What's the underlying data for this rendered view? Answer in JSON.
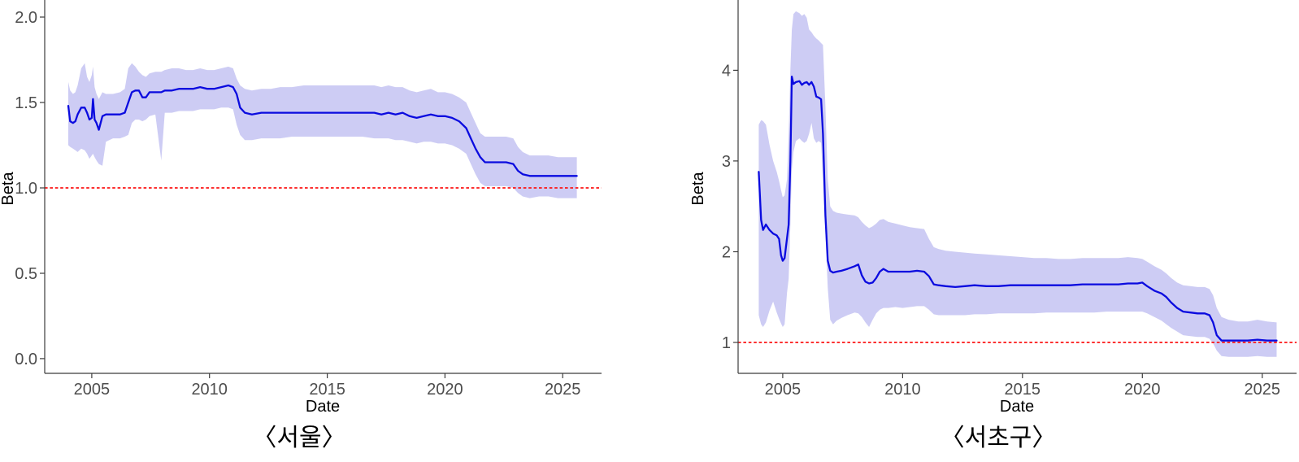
{
  "page": {
    "background": "#ffffff"
  },
  "style": {
    "line_color": "#0b0bdf",
    "band_color": "#cdccf4",
    "reference_color": "#fb1414",
    "axis_color": "#3c3c3c",
    "tick_label_color": "#4d4d4d",
    "title_color": "#000000"
  },
  "chart_data": [
    {
      "type": "line",
      "caption": "〈서울〉",
      "xlabel": "Date",
      "ylabel": "Beta",
      "x_ticks": [
        2005,
        2010,
        2015,
        2020,
        2025
      ],
      "y_ticks": [
        0,
        0.5,
        1,
        1.5,
        2
      ],
      "y_tick_labels": [
        "0.0",
        "0.5",
        "1.0",
        "1.5",
        "2.0"
      ],
      "xlim": [
        2003.0,
        2026.65
      ],
      "ylim": [
        -0.086,
        2.1
      ],
      "reference_y": 1.0,
      "grid": false,
      "legend": "none",
      "series": {
        "x": [
          2004.0,
          2004.08,
          2004.2,
          2004.3,
          2004.4,
          2004.55,
          2004.7,
          2004.8,
          2004.9,
          2005.0,
          2005.05,
          2005.12,
          2005.2,
          2005.3,
          2005.45,
          2005.6,
          2005.9,
          2006.2,
          2006.4,
          2006.55,
          2006.7,
          2006.85,
          2007.0,
          2007.15,
          2007.3,
          2007.45,
          2007.7,
          2007.95,
          2008.1,
          2008.4,
          2008.7,
          2009.0,
          2009.3,
          2009.6,
          2009.9,
          2010.2,
          2010.5,
          2010.8,
          2011.0,
          2011.15,
          2011.3,
          2011.5,
          2011.8,
          2012.2,
          2012.6,
          2013.0,
          2013.5,
          2014.0,
          2014.5,
          2015.0,
          2015.5,
          2016.0,
          2016.5,
          2017.0,
          2017.3,
          2017.6,
          2017.9,
          2018.2,
          2018.5,
          2018.8,
          2019.1,
          2019.4,
          2019.7,
          2020.0,
          2020.3,
          2020.6,
          2020.9,
          2021.1,
          2021.3,
          2021.5,
          2021.7,
          2022.0,
          2022.3,
          2022.6,
          2022.9,
          2023.1,
          2023.3,
          2023.6,
          2024.0,
          2024.4,
          2024.8,
          2025.2,
          2025.6
        ],
        "beta": [
          1.48,
          1.39,
          1.38,
          1.39,
          1.43,
          1.47,
          1.47,
          1.44,
          1.4,
          1.41,
          1.52,
          1.4,
          1.38,
          1.34,
          1.42,
          1.43,
          1.43,
          1.43,
          1.44,
          1.5,
          1.56,
          1.57,
          1.57,
          1.53,
          1.53,
          1.56,
          1.56,
          1.56,
          1.57,
          1.57,
          1.58,
          1.58,
          1.58,
          1.59,
          1.58,
          1.58,
          1.59,
          1.6,
          1.59,
          1.55,
          1.47,
          1.44,
          1.43,
          1.44,
          1.44,
          1.44,
          1.44,
          1.44,
          1.44,
          1.44,
          1.44,
          1.44,
          1.44,
          1.44,
          1.43,
          1.44,
          1.43,
          1.44,
          1.42,
          1.41,
          1.42,
          1.43,
          1.42,
          1.42,
          1.41,
          1.39,
          1.35,
          1.29,
          1.23,
          1.18,
          1.15,
          1.15,
          1.15,
          1.15,
          1.14,
          1.1,
          1.08,
          1.07,
          1.07,
          1.07,
          1.07,
          1.07,
          1.07
        ],
        "upper": [
          1.62,
          1.57,
          1.55,
          1.56,
          1.6,
          1.7,
          1.73,
          1.65,
          1.62,
          1.66,
          1.71,
          1.59,
          1.55,
          1.52,
          1.56,
          1.55,
          1.55,
          1.56,
          1.58,
          1.7,
          1.73,
          1.71,
          1.68,
          1.66,
          1.65,
          1.67,
          1.68,
          1.68,
          1.69,
          1.7,
          1.7,
          1.69,
          1.69,
          1.7,
          1.69,
          1.69,
          1.7,
          1.71,
          1.7,
          1.64,
          1.6,
          1.58,
          1.57,
          1.58,
          1.58,
          1.59,
          1.59,
          1.6,
          1.6,
          1.6,
          1.6,
          1.6,
          1.6,
          1.6,
          1.59,
          1.6,
          1.59,
          1.59,
          1.57,
          1.56,
          1.57,
          1.58,
          1.56,
          1.56,
          1.55,
          1.53,
          1.5,
          1.44,
          1.38,
          1.32,
          1.3,
          1.3,
          1.3,
          1.3,
          1.29,
          1.24,
          1.21,
          1.19,
          1.19,
          1.19,
          1.18,
          1.18,
          1.18
        ],
        "lower": [
          1.25,
          1.24,
          1.23,
          1.22,
          1.21,
          1.23,
          1.22,
          1.2,
          1.17,
          1.19,
          1.2,
          1.18,
          1.16,
          1.14,
          1.13,
          1.27,
          1.29,
          1.29,
          1.3,
          1.31,
          1.38,
          1.4,
          1.4,
          1.39,
          1.4,
          1.42,
          1.43,
          1.16,
          1.44,
          1.44,
          1.45,
          1.45,
          1.45,
          1.46,
          1.46,
          1.46,
          1.47,
          1.47,
          1.46,
          1.37,
          1.31,
          1.28,
          1.28,
          1.29,
          1.29,
          1.29,
          1.3,
          1.3,
          1.3,
          1.3,
          1.3,
          1.3,
          1.3,
          1.29,
          1.29,
          1.29,
          1.28,
          1.28,
          1.27,
          1.26,
          1.27,
          1.27,
          1.26,
          1.26,
          1.25,
          1.23,
          1.2,
          1.14,
          1.08,
          1.03,
          1.01,
          1.01,
          1.01,
          1.01,
          1.0,
          0.97,
          0.95,
          0.94,
          0.95,
          0.95,
          0.94,
          0.94,
          0.94
        ]
      }
    },
    {
      "type": "line",
      "caption": "〈서초구〉",
      "xlabel": "Date",
      "ylabel": "Beta",
      "x_ticks": [
        2005,
        2010,
        2015,
        2020,
        2025
      ],
      "y_ticks": [
        1,
        2,
        3,
        4
      ],
      "y_tick_labels": [
        "1",
        "2",
        "3",
        "4"
      ],
      "xlim": [
        2003.14,
        2026.43
      ],
      "ylim": [
        0.659,
        4.775
      ],
      "reference_y": 1.0,
      "grid": false,
      "legend": "none",
      "series": {
        "x": [
          2004.0,
          2004.1,
          2004.18,
          2004.3,
          2004.45,
          2004.6,
          2004.75,
          2004.85,
          2004.93,
          2005.0,
          2005.08,
          2005.18,
          2005.25,
          2005.32,
          2005.38,
          2005.45,
          2005.55,
          2005.7,
          2005.8,
          2005.9,
          2006.0,
          2006.1,
          2006.2,
          2006.3,
          2006.4,
          2006.5,
          2006.6,
          2006.68,
          2006.78,
          2006.88,
          2006.98,
          2007.1,
          2007.25,
          2007.45,
          2007.7,
          2008.0,
          2008.15,
          2008.3,
          2008.45,
          2008.6,
          2008.75,
          2008.9,
          2009.05,
          2009.2,
          2009.4,
          2009.7,
          2010.0,
          2010.3,
          2010.6,
          2010.9,
          2011.1,
          2011.3,
          2011.5,
          2011.8,
          2012.2,
          2012.6,
          2013.0,
          2013.5,
          2014.0,
          2014.5,
          2015.0,
          2015.5,
          2016.0,
          2016.5,
          2017.0,
          2017.5,
          2018.0,
          2018.5,
          2019.0,
          2019.4,
          2019.8,
          2020.0,
          2020.2,
          2020.5,
          2020.8,
          2021.0,
          2021.2,
          2021.45,
          2021.7,
          2022.0,
          2022.3,
          2022.6,
          2022.8,
          2022.95,
          2023.1,
          2023.3,
          2023.6,
          2024.0,
          2024.4,
          2024.8,
          2025.2,
          2025.6
        ],
        "beta": [
          2.88,
          2.35,
          2.24,
          2.3,
          2.24,
          2.2,
          2.18,
          2.14,
          1.96,
          1.9,
          1.93,
          2.15,
          2.3,
          3.0,
          3.93,
          3.85,
          3.87,
          3.88,
          3.84,
          3.86,
          3.87,
          3.84,
          3.87,
          3.82,
          3.71,
          3.7,
          3.68,
          3.3,
          2.4,
          1.9,
          1.79,
          1.77,
          1.78,
          1.79,
          1.81,
          1.84,
          1.86,
          1.74,
          1.67,
          1.65,
          1.66,
          1.71,
          1.78,
          1.81,
          1.78,
          1.78,
          1.78,
          1.78,
          1.79,
          1.78,
          1.73,
          1.64,
          1.63,
          1.62,
          1.61,
          1.62,
          1.63,
          1.62,
          1.62,
          1.63,
          1.63,
          1.63,
          1.63,
          1.63,
          1.63,
          1.64,
          1.64,
          1.64,
          1.64,
          1.65,
          1.65,
          1.66,
          1.62,
          1.57,
          1.54,
          1.5,
          1.44,
          1.38,
          1.34,
          1.33,
          1.32,
          1.32,
          1.3,
          1.22,
          1.08,
          1.02,
          1.02,
          1.02,
          1.02,
          1.03,
          1.02,
          1.02
        ],
        "upper": [
          3.4,
          3.45,
          3.44,
          3.4,
          3.18,
          3.0,
          2.88,
          2.78,
          2.68,
          2.6,
          2.62,
          2.8,
          3.3,
          4.0,
          4.45,
          4.62,
          4.65,
          4.63,
          4.6,
          4.62,
          4.58,
          4.45,
          4.42,
          4.38,
          4.35,
          4.33,
          4.3,
          4.28,
          3.6,
          2.8,
          2.5,
          2.45,
          2.43,
          2.42,
          2.41,
          2.4,
          2.38,
          2.33,
          2.29,
          2.26,
          2.28,
          2.31,
          2.35,
          2.36,
          2.33,
          2.31,
          2.29,
          2.27,
          2.26,
          2.25,
          2.14,
          2.05,
          2.03,
          2.01,
          2.0,
          1.99,
          1.98,
          1.97,
          1.96,
          1.95,
          1.94,
          1.93,
          1.93,
          1.92,
          1.92,
          1.93,
          1.93,
          1.93,
          1.93,
          1.94,
          1.93,
          1.92,
          1.89,
          1.84,
          1.8,
          1.76,
          1.71,
          1.66,
          1.63,
          1.62,
          1.61,
          1.61,
          1.59,
          1.52,
          1.38,
          1.28,
          1.25,
          1.23,
          1.23,
          1.25,
          1.23,
          1.22
        ],
        "lower": [
          1.3,
          1.2,
          1.17,
          1.22,
          1.35,
          1.45,
          1.33,
          1.26,
          1.21,
          1.17,
          1.2,
          1.55,
          1.7,
          2.3,
          2.9,
          3.1,
          3.22,
          3.25,
          3.22,
          3.2,
          3.22,
          3.3,
          3.42,
          3.25,
          3.2,
          3.22,
          3.2,
          2.8,
          2.2,
          1.6,
          1.25,
          1.2,
          1.24,
          1.27,
          1.3,
          1.33,
          1.32,
          1.28,
          1.22,
          1.17,
          1.25,
          1.32,
          1.36,
          1.38,
          1.38,
          1.39,
          1.38,
          1.39,
          1.4,
          1.4,
          1.36,
          1.31,
          1.3,
          1.3,
          1.3,
          1.3,
          1.31,
          1.31,
          1.32,
          1.32,
          1.32,
          1.32,
          1.33,
          1.33,
          1.33,
          1.33,
          1.33,
          1.34,
          1.34,
          1.34,
          1.34,
          1.34,
          1.32,
          1.28,
          1.24,
          1.2,
          1.16,
          1.12,
          1.08,
          1.07,
          1.06,
          1.06,
          1.04,
          0.99,
          0.91,
          0.85,
          0.84,
          0.84,
          0.84,
          0.85,
          0.84,
          0.84
        ]
      }
    }
  ]
}
